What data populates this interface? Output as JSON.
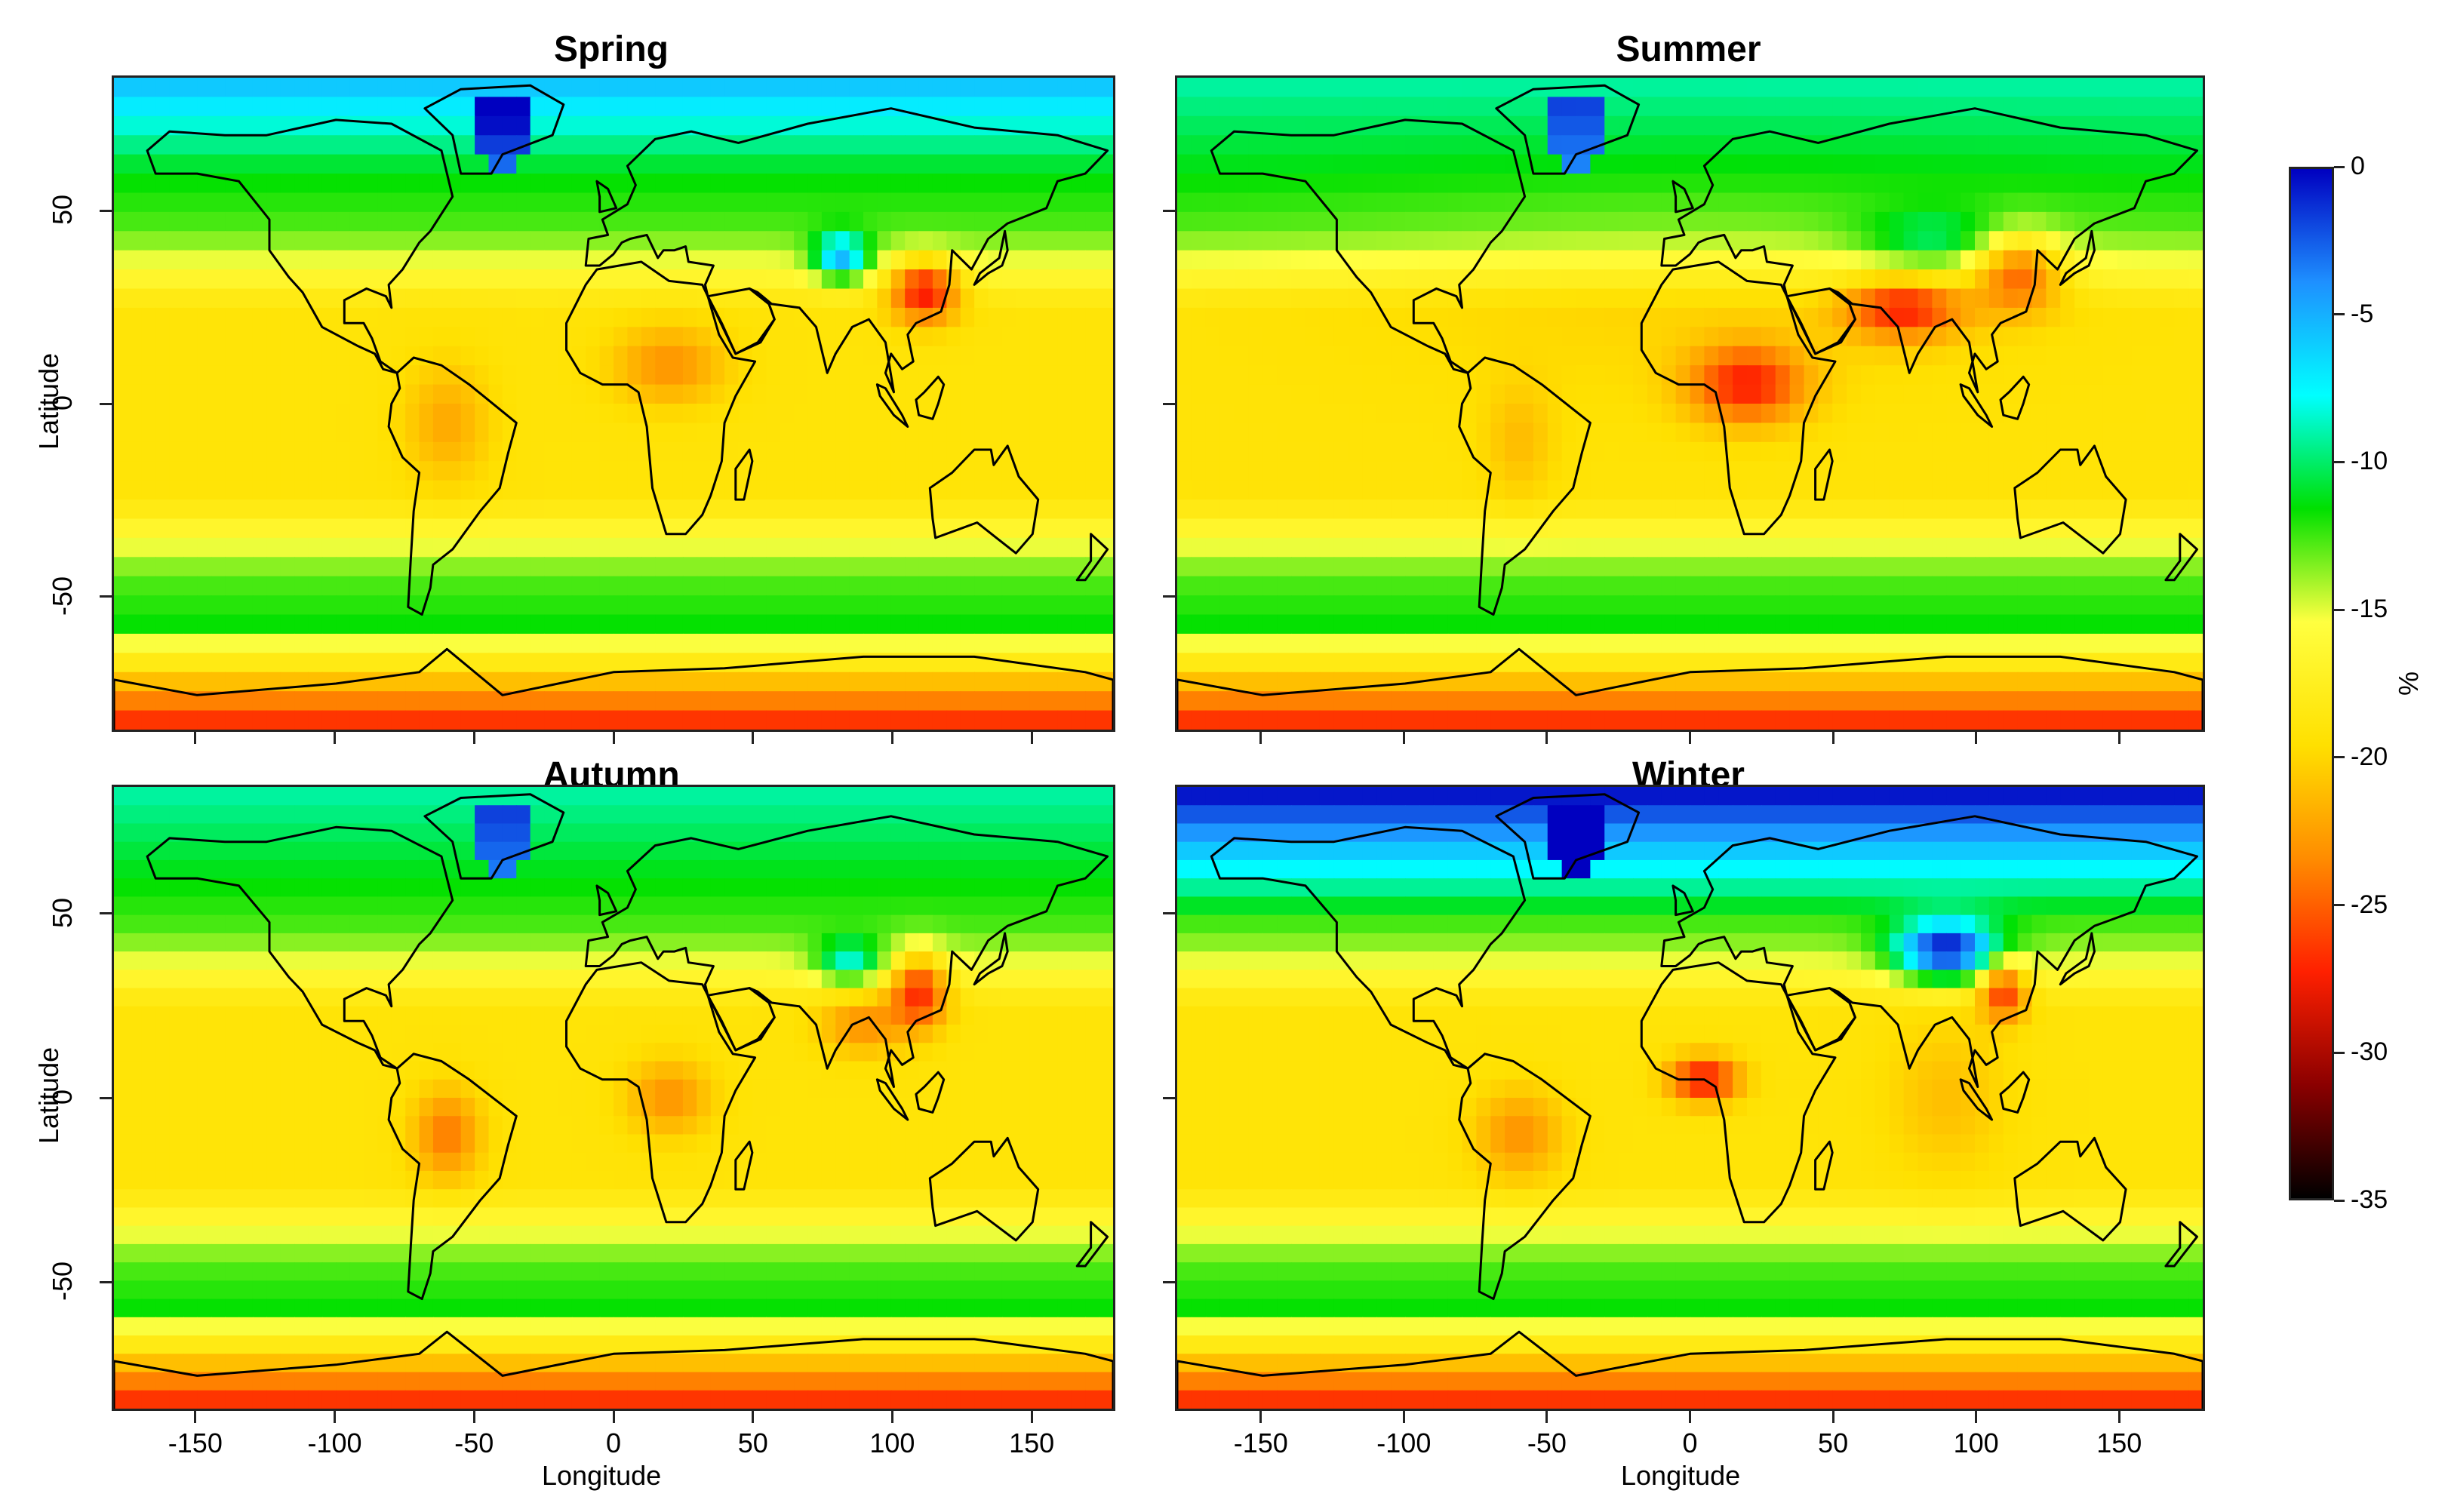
{
  "panels": [
    {
      "title": "Spring",
      "season": "spring"
    },
    {
      "title": "Summer",
      "season": "summer"
    },
    {
      "title": "Autumn",
      "season": "autumn"
    },
    {
      "title": "Winter",
      "season": "winter"
    }
  ],
  "axes": {
    "xlabel": "Longitude",
    "ylabel": "Latitude",
    "x_ticks": [
      "-150",
      "-100",
      "-50",
      "0",
      "50",
      "100",
      "150"
    ],
    "x_tick_values": [
      -150,
      -100,
      -50,
      0,
      50,
      100,
      150
    ],
    "y_ticks": [
      "50",
      "0",
      "-50"
    ],
    "y_tick_values": [
      50,
      0,
      -50
    ],
    "xlim": [
      -180,
      180
    ],
    "ylim": [
      -85,
      85
    ]
  },
  "colorbar": {
    "unit": "%",
    "ticks": [
      "0",
      "-5",
      "-10",
      "-15",
      "-20",
      "-25",
      "-30",
      "-35"
    ],
    "tick_values": [
      0,
      -5,
      -10,
      -15,
      -20,
      -25,
      -30,
      -35
    ],
    "range": [
      -35,
      0
    ],
    "colors": [
      "#000000",
      "#8b0000",
      "#ff2000",
      "#ff8c00",
      "#ffe000",
      "#ffff40",
      "#00e000",
      "#00ffff",
      "#1e90ff",
      "#0000c0"
    ]
  },
  "chart_data": {
    "type": "heatmap",
    "x_unit": "Longitude",
    "y_unit": "Latitude",
    "value_unit": "%",
    "panels": [
      "Spring",
      "Summer",
      "Autumn",
      "Winter"
    ]
  }
}
